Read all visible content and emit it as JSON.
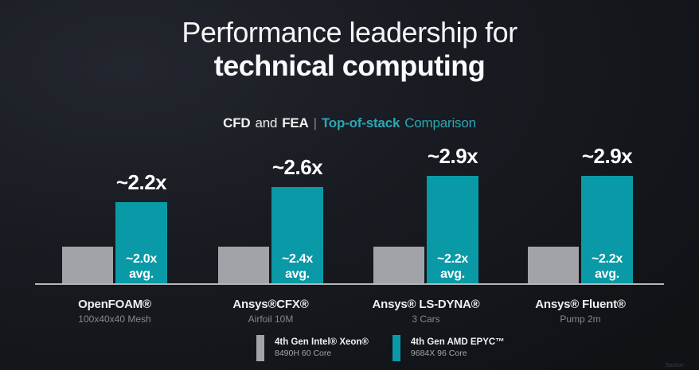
{
  "slide": {
    "title_line1": "Performance leadership for",
    "title_line2": "technical computing",
    "subtitle": {
      "seg1_bold": "CFD",
      "seg2": "and",
      "seg3_bold": "FEA",
      "divider": "|",
      "seg4_bold": "Top-of-stack",
      "seg5": "Comparison"
    },
    "footnote": "Source:"
  },
  "chart_data": {
    "type": "bar",
    "title": "CFD and FEA | Top-of-stack Comparison",
    "categories": [
      "OpenFOAM®",
      "Ansys®CFX®",
      "Ansys® LS-DYNA®",
      "Ansys® Fluent®"
    ],
    "category_sublabels": [
      "100x40x40 Mesh",
      "Airfoil 10M",
      "3 Cars",
      "Pump 2m"
    ],
    "series": [
      {
        "name": "4th Gen Intel® Xeon® 8490H 60 Core",
        "values": [
          1.0,
          1.0,
          1.0,
          1.0
        ],
        "color": "#a0a3a7"
      },
      {
        "name": "4th Gen AMD EPYC™ 9684X 96 Core",
        "values": [
          2.2,
          2.6,
          2.9,
          2.9
        ],
        "color": "#0a99a6"
      }
    ],
    "top_labels": [
      "~2.2x",
      "~2.6x",
      "~2.9x",
      "~2.9x"
    ],
    "inner_labels": [
      "~2.0x",
      "~2.4x",
      "~2.2x",
      "~2.2x"
    ],
    "inner_suffix": "avg.",
    "baseline_value": 1.0,
    "ylim": [
      0,
      3.2
    ],
    "grid": false,
    "legend_position": "bottom",
    "axis_color": "#b3b5b8"
  },
  "legend": {
    "items": [
      {
        "title": "4th Gen Intel® Xeon®",
        "subtitle": "8490H 60 Core",
        "color": "#a0a3a7"
      },
      {
        "title": "4th Gen AMD EPYC™",
        "subtitle": "9684X 96 Core",
        "color": "#0a99a6"
      }
    ]
  }
}
